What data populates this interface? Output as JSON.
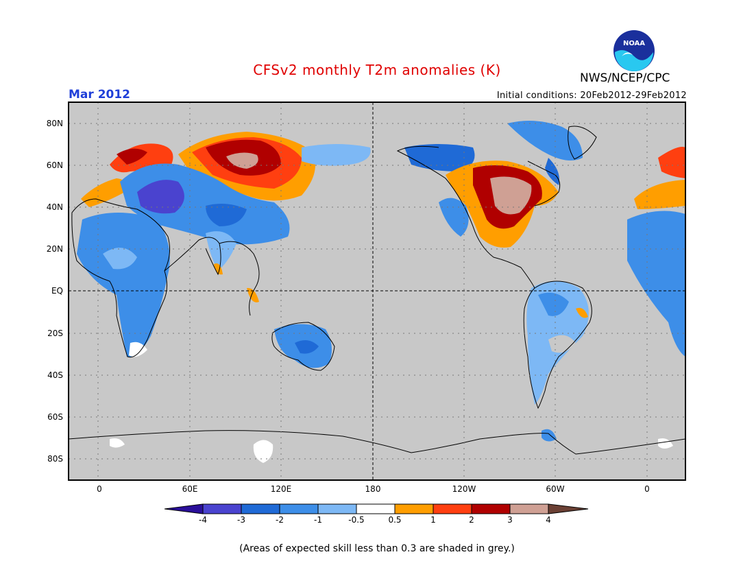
{
  "header": {
    "title": "CFSv2 monthly T2m anomalies (K)",
    "organization": "NWS/NCEP/CPC",
    "month": "Mar 2012",
    "initial_conditions": "Initial conditions: 20Feb2012-29Feb2012",
    "logo_text": "NOAA"
  },
  "map": {
    "lat_labels": [
      "80N",
      "60N",
      "40N",
      "20N",
      "EQ",
      "20S",
      "40S",
      "60S",
      "80S"
    ],
    "lon_labels": [
      "0",
      "60E",
      "120E",
      "180",
      "120W",
      "60W",
      "0"
    ],
    "background_color": "#c8c8c8"
  },
  "legend": {
    "labels": [
      "-4",
      "-3",
      "-2",
      "-1",
      "-0.5",
      "0.5",
      "1",
      "2",
      "3",
      "4"
    ],
    "colors": [
      "#2a0f9a",
      "#4a43cf",
      "#1f6ad6",
      "#3d8ee8",
      "#7db8f5",
      "#ffffff",
      "#ff9e00",
      "#ff3f10",
      "#b00000",
      "#cfa094",
      "#6b4034"
    ]
  },
  "footnote": "(Areas of expected skill less than 0.3 are shaded in grey.)"
}
